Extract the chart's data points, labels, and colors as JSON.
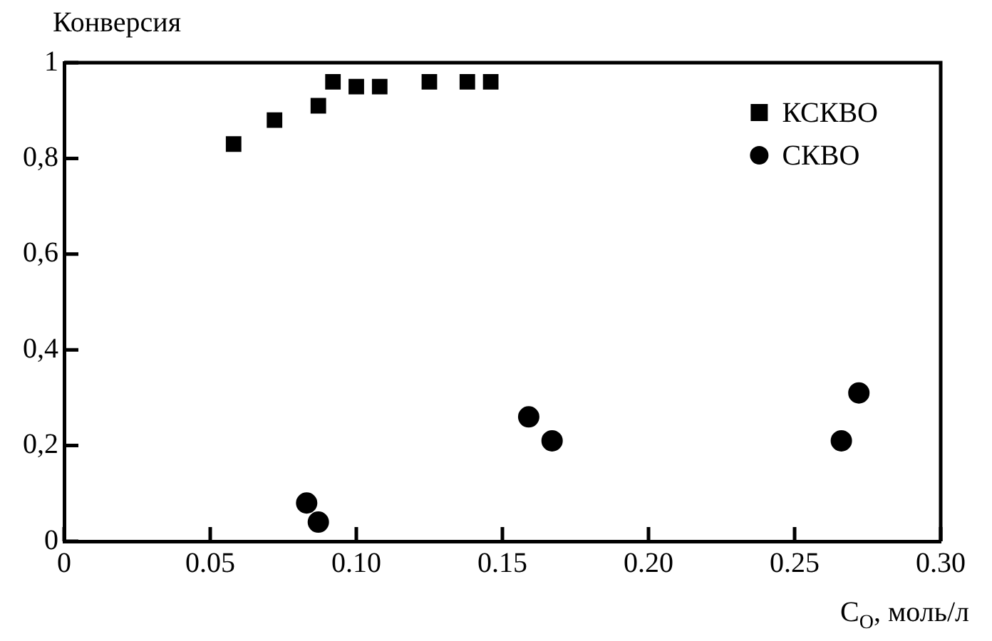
{
  "chart_data": {
    "type": "scatter",
    "xlabel": "C$_{O}$, моль/л",
    "ylabel": "Конверсия",
    "xlim": [
      0,
      0.3
    ],
    "ylim": [
      0,
      1
    ],
    "xticks": [
      0,
      {
        "value": 0.05,
        "label": "0.05"
      },
      {
        "value": 0.1,
        "label": "0.10"
      },
      0.15,
      {
        "value": 0.2,
        "label": "0.20"
      },
      0.25,
      {
        "value": 0.3,
        "label": "0.30"
      }
    ],
    "yticks": [
      0,
      {
        "value": 0.2,
        "label": "0,2"
      },
      {
        "value": 0.4,
        "label": "0,4"
      },
      {
        "value": 0.6,
        "label": "0,6"
      },
      {
        "value": 0.8,
        "label": "0,8"
      },
      1
    ],
    "grid": false,
    "legend": "top right",
    "series": [
      {
        "name": "КСКВО",
        "color": "#000000",
        "marker": "square",
        "x": [
          0.058,
          0.072,
          0.087,
          0.092,
          0.1,
          0.108,
          0.125,
          0.138,
          0.146
        ],
        "values": [
          0.83,
          0.88,
          0.91,
          0.96,
          0.95,
          0.95,
          0.96,
          0.96,
          0.96
        ]
      },
      {
        "name": "СКВО",
        "color": "#000000",
        "marker": "circle",
        "x": [
          0.083,
          0.087,
          0.159,
          0.167,
          0.266,
          0.272
        ],
        "values": [
          0.08,
          0.04,
          0.26,
          0.21,
          0.21,
          0.31
        ]
      }
    ]
  }
}
